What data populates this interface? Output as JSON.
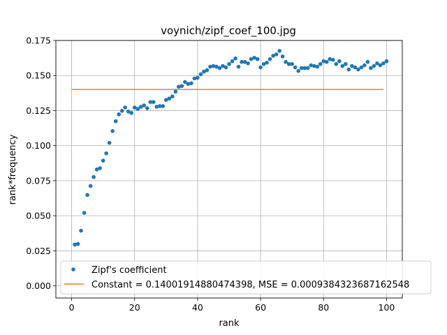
{
  "chart_data": {
    "type": "scatter",
    "title": "voynich/zipf_coef_100.jpg",
    "xlabel": "rank",
    "ylabel": "rank*frequency",
    "xlim": [
      -5,
      105
    ],
    "ylim": [
      -0.0087,
      0.175
    ],
    "x_ticks": [
      0,
      20,
      40,
      60,
      80,
      100
    ],
    "x_tick_labels": [
      "0",
      "20",
      "40",
      "60",
      "80",
      "100"
    ],
    "y_ticks": [
      0.0,
      0.025,
      0.05,
      0.075,
      0.1,
      0.125,
      0.15,
      0.175
    ],
    "y_tick_labels": [
      "0.000",
      "0.025",
      "0.050",
      "0.075",
      "0.100",
      "0.125",
      "0.150",
      "0.175"
    ],
    "grid": true,
    "legend_position": "lower-right",
    "colors": {
      "series": "#1f77b4",
      "constant": "#ff7f0e",
      "grid": "#b0b0b0"
    },
    "series": [
      {
        "name": "Zipf's coefficient",
        "kind": "points",
        "x": [
          1,
          2,
          3,
          4,
          5,
          6,
          7,
          8,
          9,
          10,
          11,
          12,
          13,
          14,
          15,
          16,
          17,
          18,
          19,
          20,
          21,
          22,
          23,
          24,
          25,
          26,
          27,
          28,
          29,
          30,
          31,
          32,
          33,
          34,
          35,
          36,
          37,
          38,
          39,
          40,
          41,
          42,
          43,
          44,
          45,
          46,
          47,
          48,
          49,
          50,
          51,
          52,
          53,
          54,
          55,
          56,
          57,
          58,
          59,
          60,
          61,
          62,
          63,
          64,
          65,
          66,
          67,
          68,
          69,
          70,
          71,
          72,
          73,
          74,
          75,
          76,
          77,
          78,
          79,
          80,
          81,
          82,
          83,
          84,
          85,
          86,
          87,
          88,
          89,
          90,
          91,
          92,
          93,
          94,
          95,
          96,
          97,
          98,
          99,
          100
        ],
        "y": [
          0.0294,
          0.0299,
          0.0393,
          0.052,
          0.0648,
          0.0712,
          0.0776,
          0.083,
          0.0839,
          0.0893,
          0.0945,
          0.102,
          0.1104,
          0.1174,
          0.1223,
          0.1248,
          0.1272,
          0.1243,
          0.1233,
          0.1272,
          0.1262,
          0.1277,
          0.1287,
          0.1267,
          0.1311,
          0.1311,
          0.1277,
          0.1282,
          0.1282,
          0.1326,
          0.1336,
          0.1351,
          0.1385,
          0.142,
          0.1425,
          0.1454,
          0.144,
          0.1445,
          0.1479,
          0.1484,
          0.1509,
          0.1528,
          0.1538,
          0.1563,
          0.1568,
          0.1563,
          0.1553,
          0.1568,
          0.1558,
          0.1582,
          0.1602,
          0.1622,
          0.1563,
          0.1597,
          0.1597,
          0.1587,
          0.1617,
          0.1627,
          0.1617,
          0.1558,
          0.1582,
          0.1592,
          0.1617,
          0.1641,
          0.1651,
          0.1676,
          0.1636,
          0.1597,
          0.1582,
          0.1582,
          0.1558,
          0.1533,
          0.1553,
          0.1553,
          0.1553,
          0.1573,
          0.1568,
          0.1563,
          0.1582,
          0.1602,
          0.1597,
          0.1617,
          0.1612,
          0.1582,
          0.1602,
          0.1568,
          0.1582,
          0.1543,
          0.1568,
          0.1558,
          0.1543,
          0.1558,
          0.1573,
          0.1597,
          0.1553,
          0.1568,
          0.1587,
          0.1573,
          0.1587,
          0.1602
        ]
      },
      {
        "name": "Constant = 0.14001914880474398, MSE = 0.0009384323687162548",
        "kind": "line",
        "x": [
          0,
          99
        ],
        "y": [
          0.14001914880474398,
          0.14001914880474398
        ]
      }
    ]
  }
}
